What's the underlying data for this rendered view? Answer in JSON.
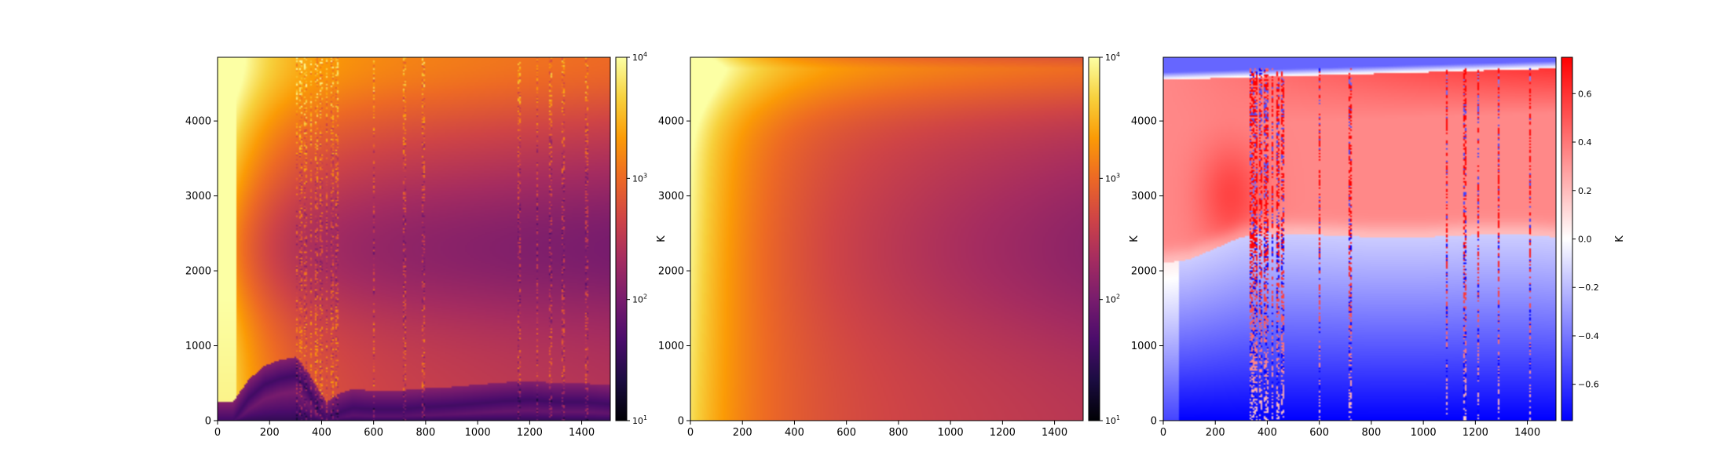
{
  "colors": {
    "inferno": [
      "#000004",
      "#1b0c41",
      "#4a0c6b",
      "#781c6d",
      "#a52c60",
      "#cf4446",
      "#ed6925",
      "#fb9b06",
      "#f7d13d",
      "#fcffa4"
    ],
    "bwr": [
      "#0000ff",
      "#ffffff",
      "#ff0000"
    ]
  },
  "chart_data": [
    {
      "type": "heatmap",
      "panel": "left",
      "title": "",
      "xlabel": "",
      "ylabel": "",
      "xlim": [
        0,
        1510
      ],
      "ylim": [
        0,
        4850
      ],
      "x_ticks": [
        0,
        200,
        400,
        600,
        800,
        1000,
        1200,
        1400
      ],
      "y_ticks": [
        0,
        1000,
        2000,
        3000,
        4000
      ],
      "colorbar": {
        "label": "K",
        "scale": "log",
        "range": [
          10,
          10000
        ],
        "ticks": [
          {
            "value": 10,
            "base": "10",
            "exp": "1"
          },
          {
            "value": 100,
            "base": "10",
            "exp": "2"
          },
          {
            "value": 1000,
            "base": "10",
            "exp": "3"
          },
          {
            "value": 10000,
            "base": "10",
            "exp": "4"
          }
        ],
        "colormap": "inferno"
      },
      "features": {
        "minimum_track": [
          [
            0,
            0
          ],
          [
            60,
            0
          ],
          [
            120,
            300
          ],
          [
            180,
            480
          ],
          [
            240,
            560
          ],
          [
            300,
            600
          ],
          [
            340,
            450
          ],
          [
            390,
            150
          ],
          [
            420,
            0
          ],
          [
            460,
            100
          ],
          [
            520,
            170
          ],
          [
            600,
            150
          ],
          [
            700,
            150
          ],
          [
            800,
            180
          ],
          [
            900,
            200
          ],
          [
            1000,
            230
          ],
          [
            1100,
            260
          ],
          [
            1200,
            280
          ],
          [
            1300,
            250
          ],
          [
            1400,
            250
          ],
          [
            1510,
            220
          ]
        ],
        "vertical_spikes_x": [
          305,
          320,
          340,
          360,
          380,
          400,
          420,
          440,
          460,
          600,
          720,
          790,
          1160,
          1230,
          1280,
          1330,
          1420
        ]
      }
    },
    {
      "type": "heatmap",
      "panel": "middle",
      "title": "",
      "xlabel": "",
      "ylabel": "",
      "xlim": [
        0,
        1510
      ],
      "ylim": [
        0,
        4850
      ],
      "x_ticks": [
        0,
        200,
        400,
        600,
        800,
        1000,
        1200,
        1400
      ],
      "y_ticks": [
        0,
        1000,
        2000,
        3000,
        4000
      ],
      "colorbar": {
        "label": "K",
        "scale": "log",
        "range": [
          10,
          10000
        ],
        "ticks": [
          {
            "value": 10,
            "base": "10",
            "exp": "1"
          },
          {
            "value": 100,
            "base": "10",
            "exp": "2"
          },
          {
            "value": 1000,
            "base": "10",
            "exp": "3"
          },
          {
            "value": 10000,
            "base": "10",
            "exp": "4"
          }
        ],
        "colormap": "inferno"
      }
    },
    {
      "type": "heatmap",
      "panel": "right",
      "title": "",
      "xlabel": "",
      "ylabel": "",
      "xlim": [
        0,
        1510
      ],
      "ylim": [
        0,
        4850
      ],
      "x_ticks": [
        0,
        200,
        400,
        600,
        800,
        1000,
        1200,
        1400
      ],
      "y_ticks": [
        0,
        1000,
        2000,
        3000,
        4000
      ],
      "colorbar": {
        "label": "K",
        "scale": "linear",
        "range": [
          -0.75,
          0.75
        ],
        "ticks": [
          {
            "value": -0.6,
            "label": "−0.6"
          },
          {
            "value": -0.4,
            "label": "−0.4"
          },
          {
            "value": -0.2,
            "label": "−0.2"
          },
          {
            "value": 0.0,
            "label": "0.0"
          },
          {
            "value": 0.2,
            "label": "0.2"
          },
          {
            "value": 0.4,
            "label": "0.4"
          },
          {
            "value": 0.6,
            "label": "0.6"
          }
        ],
        "colormap": "bwr"
      },
      "features": {
        "zero_crossing": [
          [
            0,
            2100
          ],
          [
            100,
            2150
          ],
          [
            200,
            2300
          ],
          [
            300,
            2450
          ],
          [
            400,
            2500
          ],
          [
            600,
            2480
          ],
          [
            800,
            2450
          ],
          [
            1000,
            2450
          ],
          [
            1200,
            2480
          ],
          [
            1400,
            2480
          ],
          [
            1510,
            2450
          ]
        ],
        "vertical_spikes_x": [
          340,
          350,
          360,
          375,
          390,
          400,
          420,
          440,
          460,
          600,
          720,
          1090,
          1160,
          1210,
          1290,
          1410
        ]
      }
    }
  ]
}
